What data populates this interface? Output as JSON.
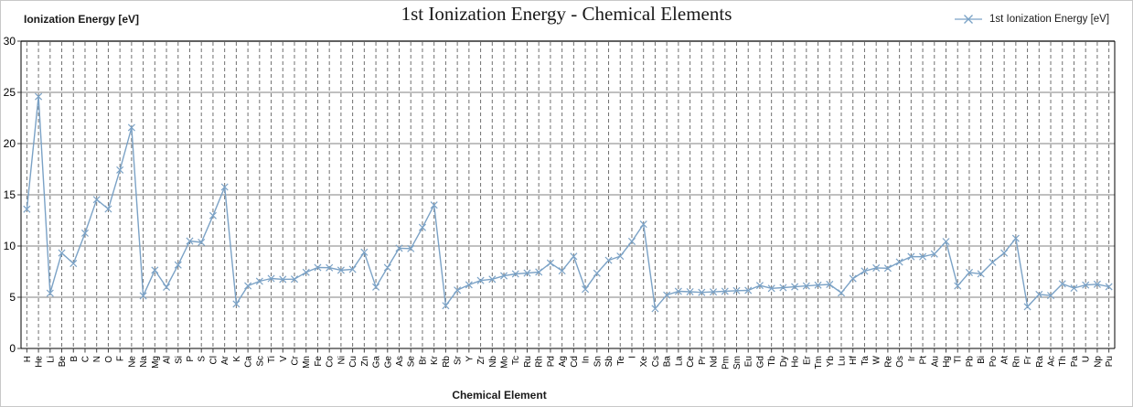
{
  "header": {
    "title": "1st Ionization Energy - Chemical Elements"
  },
  "legend": {
    "label": "1st Ionization Energy [eV]",
    "marker_icon": "x-marker-with-line"
  },
  "axes": {
    "y_title": "Ionization Energy [eV]",
    "x_title": "Chemical Element",
    "y_tick_labels": [
      "0",
      "5",
      "10",
      "15",
      "20",
      "25",
      "30"
    ]
  },
  "colors": {
    "series": "#7BA2C6",
    "h_gridline": "#808080",
    "v_gridline_dashed": "#707070",
    "axis_border": "#000000",
    "tick": "#404040"
  },
  "chart_data": {
    "type": "line",
    "title": "1st Ionization Energy - Chemical Elements",
    "xlabel": "Chemical Element",
    "ylabel": "Ionization Energy [eV]",
    "ylim": [
      0,
      30
    ],
    "ytick_step": 5,
    "grid": "horizontal solid, vertical dashed per category",
    "legend_position": "top-right",
    "marker": "x",
    "categories": [
      "H",
      "He",
      "Li",
      "Be",
      "B",
      "C",
      "N",
      "O",
      "F",
      "Ne",
      "Na",
      "Mg",
      "Al",
      "Si",
      "P",
      "S",
      "Cl",
      "Ar",
      "K",
      "Ca",
      "Sc",
      "Ti",
      "V",
      "Cr",
      "Mn",
      "Fe",
      "Co",
      "Ni",
      "Cu",
      "Zn",
      "Ga",
      "Ge",
      "As",
      "Se",
      "Br",
      "Kr",
      "Rb",
      "Sr",
      "Y",
      "Zr",
      "Nb",
      "Mo",
      "Tc",
      "Ru",
      "Rh",
      "Pd",
      "Ag",
      "Cd",
      "In",
      "Sn",
      "Sb",
      "Te",
      "I",
      "Xe",
      "Cs",
      "Ba",
      "La",
      "Ce",
      "Pr",
      "Nd",
      "Pm",
      "Sm",
      "Eu",
      "Gd",
      "Tb",
      "Dy",
      "Ho",
      "Er",
      "Tm",
      "Yb",
      "Lu",
      "Hf",
      "Ta",
      "W",
      "Re",
      "Os",
      "Ir",
      "Pt",
      "Au",
      "Hg",
      "Tl",
      "Pb",
      "Bi",
      "Po",
      "At",
      "Rn",
      "Fr",
      "Ra",
      "Ac",
      "Th",
      "Pa",
      "U",
      "Np",
      "Pu"
    ],
    "series": [
      {
        "name": "1st Ionization Energy [eV]",
        "values": [
          13.598,
          24.587,
          5.392,
          9.323,
          8.298,
          11.26,
          14.534,
          13.618,
          17.423,
          21.565,
          5.139,
          7.646,
          5.986,
          8.152,
          10.487,
          10.36,
          12.968,
          15.76,
          4.341,
          6.113,
          6.561,
          6.828,
          6.746,
          6.767,
          7.434,
          7.902,
          7.881,
          7.64,
          7.726,
          9.394,
          5.999,
          7.899,
          9.789,
          9.752,
          11.814,
          14.0,
          4.177,
          5.695,
          6.217,
          6.634,
          6.759,
          7.092,
          7.28,
          7.36,
          7.459,
          8.337,
          7.576,
          8.994,
          5.786,
          7.344,
          8.608,
          9.01,
          10.451,
          12.13,
          3.894,
          5.212,
          5.577,
          5.539,
          5.473,
          5.525,
          5.582,
          5.644,
          5.67,
          6.15,
          5.864,
          5.939,
          6.021,
          6.108,
          6.184,
          6.254,
          5.426,
          6.825,
          7.55,
          7.864,
          7.834,
          8.438,
          8.967,
          8.959,
          9.226,
          10.437,
          6.108,
          7.417,
          7.286,
          8.414,
          9.318,
          10.748,
          4.073,
          5.278,
          5.17,
          6.307,
          5.89,
          6.194,
          6.266,
          6.026
        ]
      }
    ]
  }
}
